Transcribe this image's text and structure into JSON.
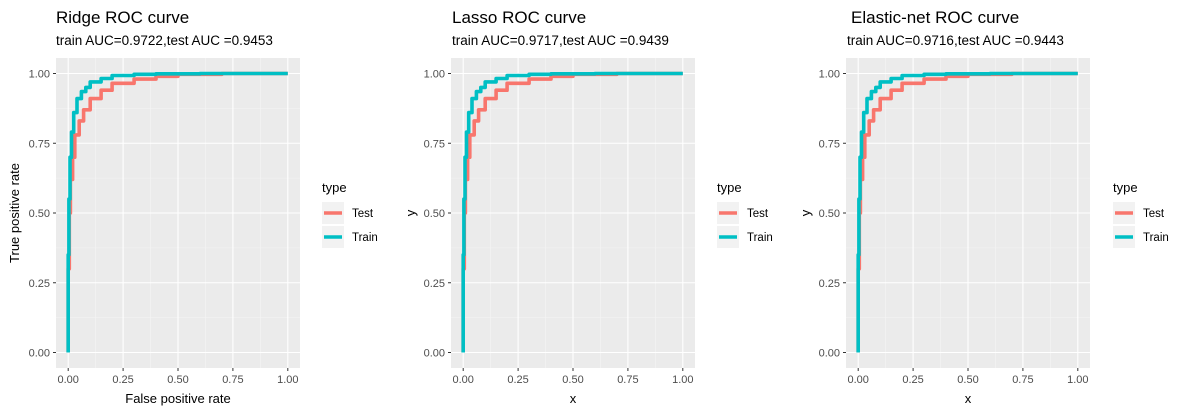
{
  "chart_data": [
    {
      "type": "line",
      "title": "Ridge ROC curve",
      "subtitle": "train AUC=0.9722,test AUC =0.9453",
      "xlabel": "False positive rate",
      "ylabel": "True positive rate",
      "xlim": [
        0,
        1
      ],
      "ylim": [
        0,
        1
      ],
      "x_ticks": [
        "0.00",
        "0.25",
        "0.50",
        "0.75",
        "1.00"
      ],
      "y_ticks": [
        "0.00",
        "0.25",
        "0.50",
        "0.75",
        "1.00"
      ],
      "legend": {
        "title": "type",
        "position": "right",
        "entries": [
          "Test",
          "Train"
        ]
      },
      "series": [
        {
          "name": "Test",
          "color": "#F8766D",
          "x": [
            0,
            0.005,
            0.01,
            0.02,
            0.03,
            0.05,
            0.07,
            0.1,
            0.15,
            0.2,
            0.3,
            0.4,
            0.5,
            0.7,
            1.0
          ],
          "y": [
            0,
            0.3,
            0.5,
            0.62,
            0.7,
            0.78,
            0.83,
            0.87,
            0.91,
            0.94,
            0.965,
            0.98,
            0.99,
            0.997,
            1.0
          ]
        },
        {
          "name": "Train",
          "color": "#00BFC4",
          "x": [
            0,
            0.003,
            0.008,
            0.015,
            0.025,
            0.04,
            0.06,
            0.08,
            0.1,
            0.15,
            0.2,
            0.3,
            0.4,
            0.6,
            1.0
          ],
          "y": [
            0,
            0.35,
            0.55,
            0.7,
            0.79,
            0.86,
            0.91,
            0.935,
            0.95,
            0.97,
            0.982,
            0.993,
            0.997,
            0.999,
            1.0
          ]
        }
      ]
    },
    {
      "type": "line",
      "title": "Lasso ROC curve",
      "subtitle": "train AUC=0.9717,test AUC =0.9439",
      "xlabel": "x",
      "ylabel": "y",
      "xlim": [
        0,
        1
      ],
      "ylim": [
        0,
        1
      ],
      "x_ticks": [
        "0.00",
        "0.25",
        "0.50",
        "0.75",
        "1.00"
      ],
      "y_ticks": [
        "0.00",
        "0.25",
        "0.50",
        "0.75",
        "1.00"
      ],
      "legend": {
        "title": "type",
        "position": "right",
        "entries": [
          "Test",
          "Train"
        ]
      },
      "series": [
        {
          "name": "Test",
          "color": "#F8766D",
          "x": [
            0,
            0.005,
            0.01,
            0.02,
            0.03,
            0.05,
            0.07,
            0.1,
            0.15,
            0.2,
            0.3,
            0.4,
            0.5,
            0.7,
            1.0
          ],
          "y": [
            0,
            0.3,
            0.5,
            0.62,
            0.7,
            0.78,
            0.83,
            0.87,
            0.91,
            0.94,
            0.965,
            0.98,
            0.99,
            0.997,
            1.0
          ]
        },
        {
          "name": "Train",
          "color": "#00BFC4",
          "x": [
            0,
            0.003,
            0.008,
            0.015,
            0.025,
            0.04,
            0.06,
            0.08,
            0.1,
            0.15,
            0.2,
            0.3,
            0.4,
            0.6,
            1.0
          ],
          "y": [
            0,
            0.35,
            0.55,
            0.7,
            0.79,
            0.86,
            0.91,
            0.935,
            0.95,
            0.97,
            0.982,
            0.993,
            0.997,
            0.999,
            1.0
          ]
        }
      ]
    },
    {
      "type": "line",
      "title": "Elastic-net ROC curve",
      "subtitle": "train AUC=0.9716,test AUC =0.9443",
      "xlabel": "x",
      "ylabel": "y",
      "xlim": [
        0,
        1
      ],
      "ylim": [
        0,
        1
      ],
      "x_ticks": [
        "0.00",
        "0.25",
        "0.50",
        "0.75",
        "1.00"
      ],
      "y_ticks": [
        "0.00",
        "0.25",
        "0.50",
        "0.75",
        "1.00"
      ],
      "legend": {
        "title": "type",
        "position": "right",
        "entries": [
          "Test",
          "Train"
        ]
      },
      "series": [
        {
          "name": "Test",
          "color": "#F8766D",
          "x": [
            0,
            0.005,
            0.01,
            0.02,
            0.03,
            0.05,
            0.07,
            0.1,
            0.15,
            0.2,
            0.3,
            0.4,
            0.5,
            0.7,
            1.0
          ],
          "y": [
            0,
            0.3,
            0.5,
            0.62,
            0.7,
            0.78,
            0.83,
            0.87,
            0.91,
            0.94,
            0.965,
            0.98,
            0.99,
            0.997,
            1.0
          ]
        },
        {
          "name": "Train",
          "color": "#00BFC4",
          "x": [
            0,
            0.003,
            0.008,
            0.015,
            0.025,
            0.04,
            0.06,
            0.08,
            0.1,
            0.15,
            0.2,
            0.3,
            0.4,
            0.6,
            1.0
          ],
          "y": [
            0,
            0.35,
            0.55,
            0.7,
            0.79,
            0.86,
            0.91,
            0.935,
            0.95,
            0.97,
            0.982,
            0.993,
            0.997,
            0.999,
            1.0
          ]
        }
      ]
    }
  ]
}
